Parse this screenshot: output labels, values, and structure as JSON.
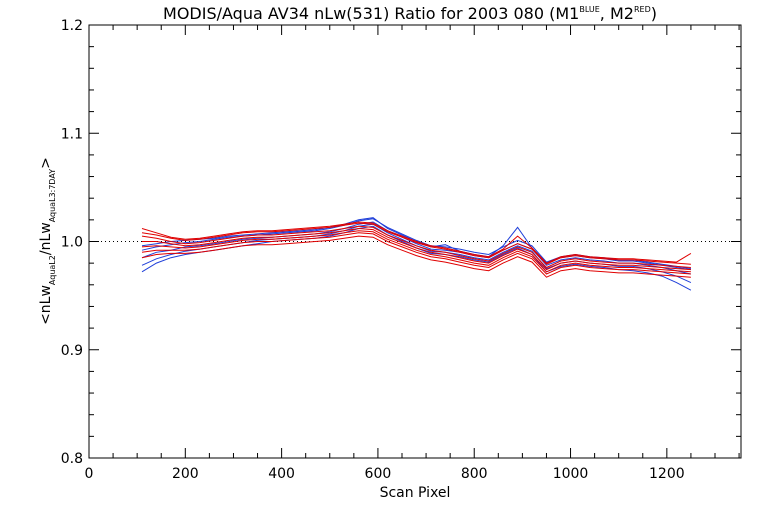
{
  "chart_data": {
    "type": "line",
    "title_parts": {
      "main": "MODIS/Aqua AV34 nLw(531) Ratio for 2003 080 (M1",
      "sup1": "BLUE",
      "mid": ", M2",
      "sup2": "RED",
      "end": ")"
    },
    "xlabel": "Scan Pixel",
    "ylabel_parts": {
      "a": "<nLw",
      "sub1": "AquaL2",
      "b": "/nLw",
      "sub2": "AquaL3:7DAY",
      "c": ">"
    },
    "xlim": [
      0,
      1354
    ],
    "ylim": [
      0.8,
      1.2
    ],
    "xticks": [
      0,
      200,
      400,
      600,
      800,
      1000,
      1200
    ],
    "xtick_labels": [
      "0",
      "200",
      "400",
      "600",
      "800",
      "1000",
      "1200"
    ],
    "yticks": [
      0.8,
      0.9,
      1.0,
      1.1,
      1.2
    ],
    "ytick_labels": [
      "0.8",
      "0.9",
      "1.0",
      "1.1",
      "1.2"
    ],
    "reference_line": 1.0,
    "colors": {
      "blue": "#1f3fd9",
      "red": "#e00000",
      "axis": "#000000"
    },
    "x": [
      110,
      140,
      170,
      200,
      230,
      260,
      290,
      320,
      350,
      380,
      410,
      440,
      470,
      500,
      530,
      560,
      590,
      620,
      650,
      680,
      710,
      740,
      770,
      800,
      830,
      860,
      890,
      920,
      950,
      980,
      1010,
      1040,
      1070,
      1100,
      1130,
      1160,
      1190,
      1220,
      1250
    ],
    "series": [
      {
        "color": "blue",
        "values": [
          0.985,
          0.99,
          0.992,
          0.995,
          0.996,
          0.998,
          1.0,
          1.002,
          1.003,
          1.004,
          1.005,
          1.006,
          1.007,
          1.009,
          1.012,
          1.016,
          1.018,
          1.01,
          1.004,
          0.998,
          0.993,
          0.992,
          0.99,
          0.987,
          0.985,
          0.992,
          0.998,
          0.993,
          0.978,
          0.983,
          0.985,
          0.983,
          0.982,
          0.98,
          0.98,
          0.978,
          0.976,
          0.973,
          0.97
        ]
      },
      {
        "color": "blue",
        "values": [
          0.978,
          0.984,
          0.988,
          0.991,
          0.993,
          0.995,
          0.997,
          0.999,
          1.001,
          1.002,
          1.003,
          1.004,
          1.005,
          1.007,
          1.01,
          1.014,
          1.016,
          1.008,
          1.002,
          0.996,
          0.991,
          0.99,
          0.988,
          0.985,
          0.983,
          0.99,
          0.996,
          0.991,
          0.975,
          0.98,
          0.982,
          0.98,
          0.979,
          0.977,
          0.977,
          0.975,
          0.972,
          0.968,
          0.962
        ]
      },
      {
        "color": "blue",
        "values": [
          0.972,
          0.98,
          0.985,
          0.988,
          0.99,
          0.992,
          0.994,
          0.996,
          0.998,
          1.0,
          1.001,
          1.002,
          1.003,
          1.005,
          1.008,
          1.012,
          1.014,
          1.006,
          1.0,
          0.994,
          0.989,
          0.988,
          0.986,
          0.983,
          0.981,
          0.988,
          0.994,
          0.988,
          0.972,
          0.977,
          0.979,
          0.977,
          0.976,
          0.974,
          0.973,
          0.971,
          0.968,
          0.962,
          0.955
        ]
      },
      {
        "color": "blue",
        "values": [
          0.992,
          0.995,
          0.997,
          0.999,
          1.0,
          1.002,
          1.004,
          1.005,
          1.006,
          1.007,
          1.008,
          1.009,
          1.01,
          1.012,
          1.015,
          1.019,
          1.021,
          1.013,
          1.007,
          1.001,
          0.996,
          0.995,
          0.993,
          0.99,
          0.988,
          0.995,
          1.001,
          0.996,
          0.981,
          0.986,
          0.988,
          0.986,
          0.985,
          0.983,
          0.983,
          0.981,
          0.979,
          0.977,
          0.975
        ]
      },
      {
        "color": "blue",
        "values": [
          0.996,
          0.998,
          1.0,
          1.001,
          1.002,
          1.003,
          1.005,
          1.006,
          1.007,
          1.008,
          1.009,
          1.01,
          1.011,
          1.013,
          1.016,
          1.02,
          1.022,
          1.012,
          1.006,
          1.0,
          0.995,
          0.997,
          0.991,
          0.988,
          0.986,
          0.996,
          1.013,
          0.994,
          0.98,
          0.985,
          0.987,
          0.985,
          0.984,
          0.982,
          0.982,
          0.98,
          0.978,
          0.976,
          0.974
        ]
      },
      {
        "color": "red",
        "values": [
          1.005,
          1.003,
          1.0,
          0.998,
          0.999,
          1.001,
          1.003,
          1.005,
          1.006,
          1.006,
          1.007,
          1.008,
          1.009,
          1.01,
          1.012,
          1.014,
          1.013,
          1.006,
          1.001,
          0.996,
          0.992,
          0.99,
          0.987,
          0.984,
          0.982,
          0.989,
          0.995,
          0.99,
          0.976,
          0.982,
          0.984,
          0.982,
          0.981,
          0.98,
          0.98,
          0.979,
          0.978,
          0.977,
          0.976
        ]
      },
      {
        "color": "red",
        "values": [
          1.0,
          1.0,
          0.998,
          0.996,
          0.997,
          0.999,
          1.001,
          1.003,
          1.004,
          1.004,
          1.005,
          1.006,
          1.007,
          1.008,
          1.01,
          1.012,
          1.011,
          1.004,
          0.999,
          0.994,
          0.99,
          0.988,
          0.985,
          0.982,
          0.98,
          0.987,
          0.993,
          0.988,
          0.974,
          0.98,
          0.982,
          0.98,
          0.979,
          0.978,
          0.978,
          0.977,
          0.976,
          0.975,
          0.974
        ]
      },
      {
        "color": "red",
        "values": [
          0.995,
          0.996,
          0.995,
          0.994,
          0.995,
          0.997,
          0.999,
          1.001,
          1.002,
          1.002,
          1.003,
          1.004,
          1.005,
          1.006,
          1.008,
          1.01,
          1.009,
          1.002,
          0.997,
          0.992,
          0.988,
          0.986,
          0.983,
          0.98,
          0.978,
          0.985,
          0.991,
          0.986,
          0.972,
          0.978,
          0.98,
          0.978,
          0.977,
          0.976,
          0.976,
          0.975,
          0.974,
          0.973,
          0.972
        ]
      },
      {
        "color": "red",
        "values": [
          0.99,
          0.992,
          0.992,
          0.992,
          0.993,
          0.995,
          0.997,
          0.999,
          1.0,
          1.0,
          1.001,
          1.002,
          1.003,
          1.004,
          1.006,
          1.008,
          1.007,
          1.0,
          0.995,
          0.99,
          0.986,
          0.984,
          0.981,
          0.978,
          0.976,
          0.983,
          0.989,
          0.984,
          0.97,
          0.976,
          0.978,
          0.976,
          0.975,
          0.974,
          0.974,
          0.973,
          0.972,
          0.971,
          0.97
        ]
      },
      {
        "color": "red",
        "values": [
          1.008,
          1.006,
          1.003,
          1.001,
          1.002,
          1.004,
          1.006,
          1.008,
          1.009,
          1.009,
          1.01,
          1.011,
          1.012,
          1.013,
          1.015,
          1.017,
          1.016,
          1.009,
          1.004,
          0.999,
          0.995,
          0.993,
          0.99,
          0.987,
          0.985,
          0.992,
          0.998,
          0.993,
          0.979,
          0.985,
          0.987,
          0.985,
          0.984,
          0.983,
          0.983,
          0.982,
          0.981,
          0.98,
          0.979
        ]
      },
      {
        "color": "red",
        "values": [
          0.985,
          0.988,
          0.989,
          0.989,
          0.99,
          0.992,
          0.994,
          0.996,
          0.997,
          0.997,
          0.998,
          0.999,
          1.0,
          1.001,
          1.003,
          1.005,
          1.004,
          0.997,
          0.992,
          0.987,
          0.983,
          0.981,
          0.978,
          0.975,
          0.973,
          0.98,
          0.986,
          0.981,
          0.967,
          0.973,
          0.975,
          0.973,
          0.972,
          0.971,
          0.971,
          0.97,
          0.969,
          0.968,
          0.967
        ]
      },
      {
        "color": "red",
        "values": [
          1.012,
          1.008,
          1.004,
          1.002,
          1.003,
          1.005,
          1.007,
          1.009,
          1.01,
          1.01,
          1.011,
          1.012,
          1.013,
          1.014,
          1.016,
          1.018,
          1.017,
          1.01,
          1.005,
          1.0,
          0.996,
          0.994,
          0.991,
          0.988,
          0.986,
          0.993,
          1.005,
          0.994,
          0.98,
          0.986,
          0.988,
          0.986,
          0.985,
          0.984,
          0.984,
          0.983,
          0.982,
          0.981,
          0.989
        ]
      }
    ]
  }
}
